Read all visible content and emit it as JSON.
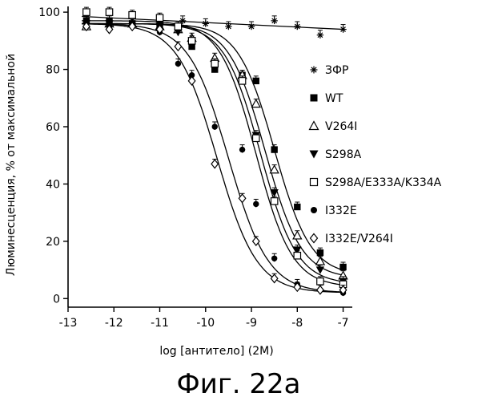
{
  "chart_data": {
    "type": "scatter",
    "title": "",
    "xlabel": "log [антитело] (2M)",
    "ylabel": "Люминесценция, % от максимальной",
    "xlim": [
      -13,
      -6.8
    ],
    "ylim": [
      -3,
      102
    ],
    "xticks": [
      "-13",
      "-12",
      "-11",
      "-10",
      "-9",
      "-8",
      "-7"
    ],
    "yticks": [
      "0",
      "20",
      "40",
      "60",
      "80",
      "100"
    ],
    "legend_position": "right",
    "series": [
      {
        "name": "ЗФР",
        "marker": "asterisk",
        "fit": "flat",
        "x": [
          -12.6,
          -12.1,
          -11.6,
          -11.0,
          -10.5,
          -10.0,
          -9.5,
          -9.0,
          -8.5,
          -8.0,
          -7.5,
          -7.0
        ],
        "y": [
          97,
          95,
          97,
          96,
          97,
          96,
          95,
          95,
          97,
          95,
          92,
          94
        ],
        "fit_y": [
          98.5,
          94
        ]
      },
      {
        "name": "WT",
        "marker": "square-filled",
        "fit": "sigmoid",
        "x": [
          -12.6,
          -12.1,
          -11.6,
          -11.0,
          -10.6,
          -10.3,
          -9.8,
          -9.2,
          -8.9,
          -8.5,
          -8.0,
          -7.5,
          -7.0
        ],
        "y": [
          97,
          97,
          96,
          96,
          94,
          88,
          80,
          78,
          76,
          52,
          32,
          16,
          11
        ],
        "top": 96,
        "bottom": 8,
        "log_ec50": -8.5,
        "hill": 1.1
      },
      {
        "name": "V264I",
        "marker": "triangle-up-open",
        "fit": "sigmoid",
        "x": [
          -12.6,
          -12.1,
          -11.6,
          -11.0,
          -10.6,
          -10.3,
          -9.8,
          -9.2,
          -8.9,
          -8.5,
          -8.0,
          -7.5,
          -7.0
        ],
        "y": [
          95,
          96,
          96,
          95,
          94,
          91,
          84,
          78,
          68,
          45,
          22,
          13,
          8
        ],
        "top": 96,
        "bottom": 7,
        "log_ec50": -8.7,
        "hill": 1.1
      },
      {
        "name": "S298A",
        "marker": "triangle-down-filled",
        "fit": "sigmoid",
        "x": [
          -12.6,
          -12.1,
          -11.6,
          -11.0,
          -10.6,
          -10.3,
          -9.8,
          -9.2,
          -8.9,
          -8.5,
          -8.0,
          -7.5,
          -7.0
        ],
        "y": [
          96,
          96,
          95,
          95,
          93,
          90,
          82,
          76,
          57,
          37,
          17,
          10,
          6
        ],
        "top": 96,
        "bottom": 5,
        "log_ec50": -8.8,
        "hill": 1.1
      },
      {
        "name": "S298A/E333A/K334A",
        "marker": "square-open",
        "fit": "sigmoid",
        "x": [
          -12.6,
          -12.1,
          -11.6,
          -11.0,
          -10.6,
          -10.3,
          -9.8,
          -9.2,
          -8.9,
          -8.5,
          -8.0,
          -7.5,
          -7.0
        ],
        "y": [
          100,
          100,
          99,
          98,
          95,
          90,
          82,
          76,
          56,
          34,
          15,
          6,
          5
        ],
        "top": 97,
        "bottom": 4,
        "log_ec50": -8.9,
        "hill": 1.1
      },
      {
        "name": "I332E",
        "marker": "circle-filled",
        "fit": "sigmoid",
        "x": [
          -12.6,
          -12.1,
          -11.6,
          -11.0,
          -10.6,
          -10.3,
          -9.8,
          -9.2,
          -8.9,
          -8.5,
          -8.0,
          -7.5,
          -7.0
        ],
        "y": [
          96,
          95,
          96,
          93,
          82,
          78,
          60,
          52,
          33,
          14,
          5,
          3,
          2
        ],
        "top": 96,
        "bottom": 2,
        "log_ec50": -9.5,
        "hill": 1.0
      },
      {
        "name": "I332E/V264I",
        "marker": "diamond-open",
        "fit": "sigmoid",
        "x": [
          -12.6,
          -12.1,
          -11.6,
          -11.0,
          -10.6,
          -10.3,
          -9.8,
          -9.2,
          -8.9,
          -8.5,
          -8.0,
          -7.5,
          -7.0
        ],
        "y": [
          95,
          94,
          95,
          94,
          88,
          76,
          47,
          35,
          20,
          7,
          4,
          3,
          3
        ],
        "top": 96,
        "bottom": 2,
        "log_ec50": -9.75,
        "hill": 1.0
      }
    ]
  },
  "figure": {
    "caption": "Фиг. 22а",
    "stray_mark": "˗"
  }
}
